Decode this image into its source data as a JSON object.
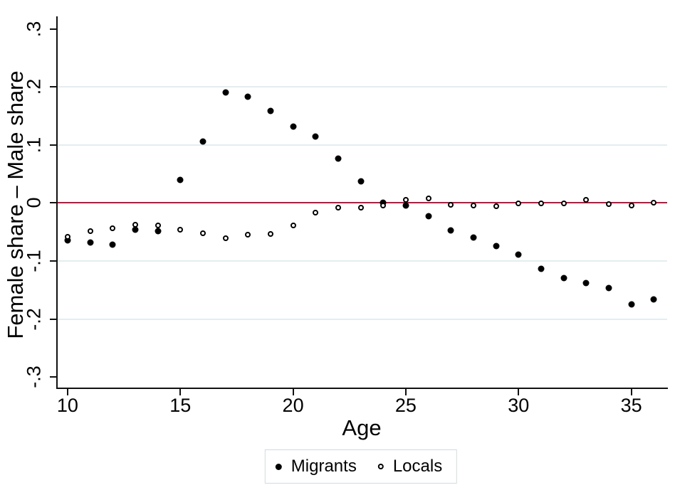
{
  "chart_data": {
    "type": "scatter",
    "title": "",
    "xlabel": "Age",
    "ylabel": "Female share – Male share",
    "xlim": [
      9.53,
      36.59
    ],
    "ylim": [
      -0.3205,
      0.3215
    ],
    "xticks": [
      10,
      15,
      20,
      25,
      30,
      35
    ],
    "xtick_labels": [
      "10",
      "15",
      "20",
      "25",
      "30",
      "35"
    ],
    "yticks": [
      0.3,
      0.2,
      0.1,
      0,
      -0.1,
      -0.2,
      -0.3
    ],
    "ytick_labels": [
      ".3",
      ".2",
      ".1",
      "0",
      "-.1",
      "-.2",
      "-.3"
    ],
    "gridlines_y": [
      0.2,
      0.1,
      -0.1,
      -0.2
    ],
    "grid_color": "#e4edf0",
    "zero_line_value": 0,
    "zero_line_color": "#c8103c",
    "legend_position": "bottom",
    "x": [
      10,
      11,
      12,
      13,
      14,
      15,
      16,
      17,
      18,
      19,
      20,
      21,
      22,
      23,
      24,
      25,
      26,
      27,
      28,
      29,
      30,
      31,
      32,
      33,
      34,
      35,
      36
    ],
    "series": [
      {
        "name": "Migrants",
        "marker": "filled-circle",
        "color": "#000000",
        "values": [
          -0.065,
          -0.068,
          -0.072,
          -0.046,
          -0.048,
          0.04,
          0.106,
          0.19,
          0.183,
          0.158,
          0.131,
          0.114,
          0.077,
          0.037,
          0.0,
          -0.004,
          -0.023,
          -0.047,
          -0.06,
          -0.074,
          -0.089,
          -0.114,
          -0.129,
          -0.138,
          -0.147,
          -0.175,
          -0.166
        ]
      },
      {
        "name": "Locals",
        "marker": "hollow-circle",
        "color": "#000000",
        "values": [
          -0.058,
          -0.049,
          -0.043,
          -0.037,
          -0.039,
          -0.046,
          -0.052,
          -0.061,
          -0.055,
          -0.053,
          -0.039,
          -0.017,
          -0.008,
          -0.008,
          -0.004,
          0.005,
          0.008,
          -0.003,
          -0.005,
          -0.006,
          -0.001,
          -0.001,
          -0.001,
          0.005,
          -0.002,
          -0.005,
          0.001
        ]
      }
    ]
  },
  "legend": {
    "items": [
      {
        "label": "Migrants"
      },
      {
        "label": "Locals"
      }
    ]
  }
}
